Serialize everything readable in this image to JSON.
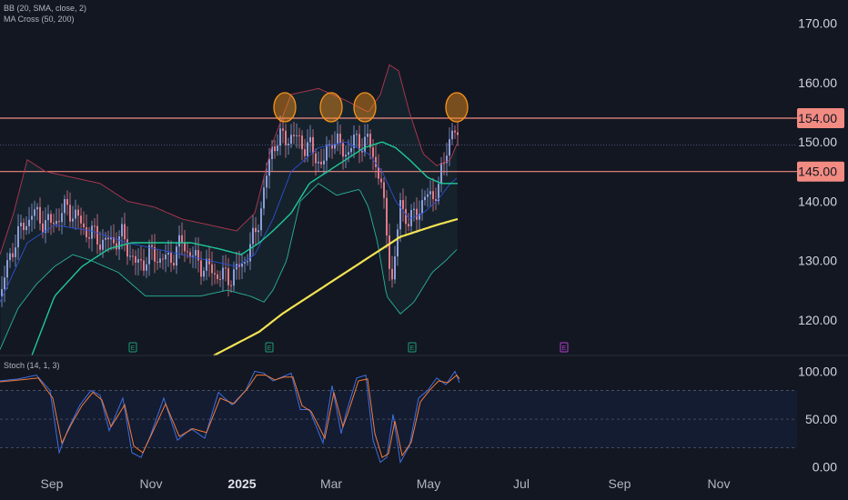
{
  "indicators": {
    "bb": "BB (20, SMA, close, 2)",
    "ma": "MA Cross (50, 200)",
    "stoch": "Stoch (14, 1, 3)"
  },
  "colors": {
    "background": "#131722",
    "up": "#8e9dd8",
    "down": "#e07a8a",
    "bb_upper": "#b2384f",
    "bb_lower": "#2bb39a",
    "bb_basis": "#2f4fd0",
    "ma_fast": "#20c997",
    "ma_slow": "#f3e353",
    "level": "#f28b82",
    "circle": "#f7931a",
    "stoch_k": "#3d6fe0",
    "stoch_d": "#f57c3a"
  },
  "chart_data": [
    {
      "type": "candlestick",
      "price_axis": {
        "ylim": [
          114,
          173
        ],
        "ticks": [
          120,
          130,
          140,
          150,
          160,
          170
        ],
        "tick_labels": [
          "120.00",
          "130.00",
          "140.00",
          "150.00",
          "160.00",
          "170.00"
        ]
      },
      "time_axis": {
        "labels": [
          "Sep",
          "Nov",
          "2025",
          "Mar",
          "May",
          "Jul",
          "Sep",
          "Nov"
        ]
      },
      "levels": [
        {
          "value": 154,
          "label": "154.00"
        },
        {
          "value": 145,
          "label": "145.00"
        }
      ],
      "last_price": 149.5,
      "highlight_circles": [
        "2025-01 high near 154",
        "2025-02 high near 154",
        "2025-03 high near 154",
        "2025-05 high near 154"
      ],
      "earnings_markers": [
        "E",
        "E",
        "E",
        "E"
      ],
      "series": [
        {
          "name": "close",
          "anchors": [
            [
              0,
              124
            ],
            [
              15,
              133
            ],
            [
              35,
              138
            ],
            [
              55,
              136
            ],
            [
              75,
              139
            ],
            [
              95,
              135
            ],
            [
              115,
              133
            ],
            [
              135,
              134
            ],
            [
              150,
              129
            ],
            [
              165,
              131
            ],
            [
              185,
              130
            ],
            [
              200,
              133
            ],
            [
              215,
              130
            ],
            [
              235,
              128
            ],
            [
              250,
              127
            ],
            [
              265,
              129
            ],
            [
              280,
              134
            ],
            [
              292,
              143
            ],
            [
              300,
              150
            ],
            [
              320,
              151
            ],
            [
              340,
              149
            ],
            [
              355,
              146
            ],
            [
              365,
              151
            ],
            [
              378,
              148
            ],
            [
              390,
              150
            ],
            [
              405,
              150
            ],
            [
              418,
              144
            ],
            [
              426,
              133
            ],
            [
              432,
              126
            ],
            [
              440,
              140
            ],
            [
              450,
              136
            ],
            [
              460,
              139
            ],
            [
              472,
              141
            ],
            [
              482,
              142
            ],
            [
              492,
              150
            ],
            [
              498,
              152
            ],
            [
              503,
              150
            ]
          ]
        },
        {
          "name": "bb_upper",
          "anchors": [
            [
              0,
              131
            ],
            [
              15,
              138
            ],
            [
              30,
              147
            ],
            [
              50,
              145
            ],
            [
              80,
              144
            ],
            [
              110,
              143
            ],
            [
              140,
              140
            ],
            [
              170,
              139
            ],
            [
              200,
              137
            ],
            [
              230,
              136
            ],
            [
              260,
              135
            ],
            [
              280,
              138
            ],
            [
              300,
              150
            ],
            [
              320,
              158
            ],
            [
              350,
              159
            ],
            [
              380,
              157
            ],
            [
              405,
              155
            ],
            [
              418,
              158
            ],
            [
              428,
              163
            ],
            [
              438,
              162
            ],
            [
              450,
              155
            ],
            [
              465,
              148
            ],
            [
              480,
              146
            ],
            [
              495,
              147
            ],
            [
              503,
              150
            ]
          ]
        },
        {
          "name": "bb_lower",
          "anchors": [
            [
              0,
              115
            ],
            [
              20,
              122
            ],
            [
              40,
              126
            ],
            [
              60,
              129
            ],
            [
              80,
              131
            ],
            [
              100,
              130
            ],
            [
              130,
              128
            ],
            [
              160,
              124
            ],
            [
              190,
              124
            ],
            [
              220,
              124
            ],
            [
              250,
              125
            ],
            [
              275,
              124
            ],
            [
              290,
              123
            ],
            [
              300,
              125
            ],
            [
              315,
              130
            ],
            [
              330,
              140
            ],
            [
              350,
              143
            ],
            [
              370,
              141
            ],
            [
              395,
              142
            ],
            [
              405,
              139
            ],
            [
              415,
              133
            ],
            [
              425,
              124
            ],
            [
              440,
              121
            ],
            [
              455,
              123
            ],
            [
              475,
              128
            ],
            [
              490,
              130
            ],
            [
              503,
              132
            ]
          ]
        },
        {
          "name": "bb_basis",
          "anchors": [
            [
              0,
              123
            ],
            [
              30,
              133
            ],
            [
              60,
              136
            ],
            [
              100,
              135
            ],
            [
              140,
              133
            ],
            [
              170,
              132
            ],
            [
              200,
              131
            ],
            [
              230,
              130
            ],
            [
              260,
              129
            ],
            [
              280,
              131
            ],
            [
              300,
              137
            ],
            [
              320,
              145
            ],
            [
              350,
              149
            ],
            [
              380,
              150
            ],
            [
              405,
              148
            ],
            [
              420,
              145
            ],
            [
              435,
              140
            ],
            [
              450,
              137
            ],
            [
              465,
              138
            ],
            [
              480,
              140
            ],
            [
              495,
              143
            ],
            [
              503,
              144
            ]
          ]
        },
        {
          "name": "ma_fast",
          "anchors": [
            [
              35,
              114
            ],
            [
              60,
              124
            ],
            [
              90,
              129
            ],
            [
              120,
              132
            ],
            [
              145,
              133
            ],
            [
              180,
              133
            ],
            [
              210,
              133
            ],
            [
              240,
              132
            ],
            [
              265,
              131
            ],
            [
              285,
              133
            ],
            [
              300,
              135
            ],
            [
              320,
              138
            ],
            [
              340,
              143
            ],
            [
              360,
              145
            ],
            [
              380,
              147
            ],
            [
              400,
              149
            ],
            [
              420,
              150
            ],
            [
              435,
              149
            ],
            [
              450,
              147
            ],
            [
              470,
              144
            ],
            [
              485,
              143
            ],
            [
              503,
              143
            ]
          ]
        },
        {
          "name": "ma_slow",
          "anchors": [
            [
              235,
              114
            ],
            [
              260,
              116
            ],
            [
              285,
              118
            ],
            [
              310,
              121
            ],
            [
              340,
              124
            ],
            [
              370,
              127
            ],
            [
              400,
              130
            ],
            [
              420,
              132
            ],
            [
              440,
              134
            ],
            [
              460,
              135
            ],
            [
              480,
              136
            ],
            [
              503,
              137
            ]
          ]
        }
      ]
    },
    {
      "type": "line",
      "title": "Stoch (14, 1, 3)",
      "ylim": [
        -5,
        108
      ],
      "ticks": [
        0,
        50,
        100
      ],
      "tick_labels": [
        "0.00",
        "50.00",
        "100.00"
      ],
      "bands": [
        20,
        80
      ],
      "series": [
        {
          "name": "%K",
          "anchors": [
            [
              0,
              90
            ],
            [
              20,
              92
            ],
            [
              40,
              96
            ],
            [
              55,
              80
            ],
            [
              65,
              15
            ],
            [
              75,
              40
            ],
            [
              88,
              65
            ],
            [
              100,
              80
            ],
            [
              110,
              75
            ],
            [
              120,
              38
            ],
            [
              135,
              72
            ],
            [
              145,
              15
            ],
            [
              155,
              10
            ],
            [
              165,
              32
            ],
            [
              180,
              72
            ],
            [
              195,
              28
            ],
            [
              210,
              40
            ],
            [
              225,
              30
            ],
            [
              240,
              78
            ],
            [
              255,
              65
            ],
            [
              270,
              80
            ],
            [
              280,
              100
            ],
            [
              290,
              98
            ],
            [
              300,
              90
            ],
            [
              310,
              94
            ],
            [
              320,
              98
            ],
            [
              330,
              60
            ],
            [
              340,
              60
            ],
            [
              355,
              25
            ],
            [
              365,
              85
            ],
            [
              375,
              35
            ],
            [
              380,
              55
            ],
            [
              392,
              93
            ],
            [
              402,
              96
            ],
            [
              410,
              28
            ],
            [
              418,
              5
            ],
            [
              425,
              10
            ],
            [
              432,
              55
            ],
            [
              440,
              5
            ],
            [
              450,
              22
            ],
            [
              460,
              72
            ],
            [
              470,
              80
            ],
            [
              480,
              93
            ],
            [
              490,
              86
            ],
            [
              500,
              100
            ],
            [
              505,
              88
            ]
          ]
        },
        {
          "name": "%D",
          "anchors": [
            [
              0,
              89
            ],
            [
              22,
              91
            ],
            [
              42,
              93
            ],
            [
              58,
              72
            ],
            [
              68,
              25
            ],
            [
              78,
              44
            ],
            [
              90,
              64
            ],
            [
              102,
              78
            ],
            [
              112,
              70
            ],
            [
              122,
              42
            ],
            [
              137,
              65
            ],
            [
              147,
              22
            ],
            [
              157,
              15
            ],
            [
              167,
              35
            ],
            [
              182,
              66
            ],
            [
              197,
              32
            ],
            [
              212,
              40
            ],
            [
              227,
              36
            ],
            [
              242,
              72
            ],
            [
              257,
              66
            ],
            [
              272,
              82
            ],
            [
              282,
              96
            ],
            [
              292,
              96
            ],
            [
              302,
              91
            ],
            [
              312,
              94
            ],
            [
              322,
              94
            ],
            [
              332,
              64
            ],
            [
              342,
              58
            ],
            [
              357,
              30
            ],
            [
              367,
              78
            ],
            [
              377,
              42
            ],
            [
              383,
              58
            ],
            [
              394,
              90
            ],
            [
              404,
              92
            ],
            [
              412,
              35
            ],
            [
              420,
              10
            ],
            [
              427,
              14
            ],
            [
              434,
              48
            ],
            [
              442,
              12
            ],
            [
              452,
              26
            ],
            [
              462,
              68
            ],
            [
              472,
              80
            ],
            [
              482,
              90
            ],
            [
              492,
              88
            ],
            [
              502,
              96
            ],
            [
              505,
              92
            ]
          ]
        }
      ]
    }
  ]
}
